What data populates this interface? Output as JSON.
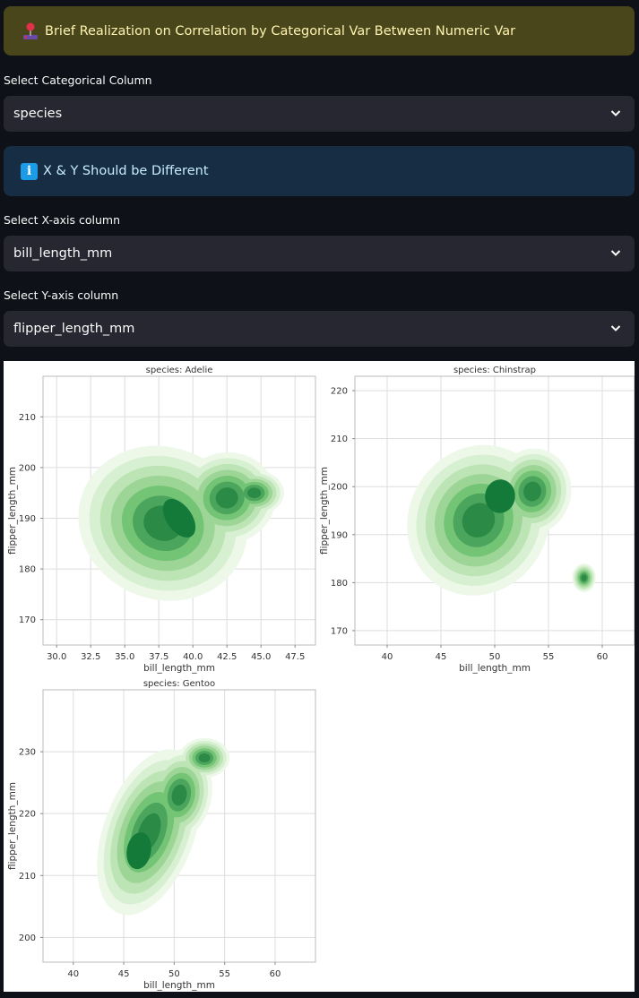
{
  "banner": {
    "title": "Brief Realization on Correlation by Categorical Var Between Numeric Var",
    "icon": "joystick-icon"
  },
  "categorical": {
    "label": "Select Categorical Column",
    "value": "species"
  },
  "info": {
    "text": "X & Y Should be Different",
    "icon": "info-icon"
  },
  "x_select": {
    "label": "Select X-axis column",
    "value": "bill_length_mm"
  },
  "y_select": {
    "label": "Select Y-axis column",
    "value": "flipper_length_mm"
  },
  "colors": {
    "page_bg": "#0e1117",
    "banner_bg": "#4a461b",
    "info_bg": "#172d43",
    "select_bg": "#262730"
  },
  "chart_data": [
    {
      "type": "kde",
      "title": "species: Adelie",
      "xlabel": "bill_length_mm",
      "ylabel": "flipper_length_mm",
      "xlim": [
        29,
        49
      ],
      "ylim": [
        165,
        218
      ],
      "xticks": [
        30.0,
        32.5,
        35.0,
        37.5,
        40.0,
        42.5,
        45.0,
        47.5
      ],
      "xtick_labels": [
        "30.0",
        "32.5",
        "35.0",
        "37.5",
        "40.0",
        "42.5",
        "45.0",
        "47.5"
      ],
      "yticks": [
        170,
        180,
        190,
        200,
        210
      ],
      "grid": true,
      "peak": {
        "x": 39,
        "y": 190
      }
    },
    {
      "type": "kde",
      "title": "species: Chinstrap",
      "xlabel": "bill_length_mm",
      "ylabel": "flipper_length_mm",
      "xlim": [
        37,
        63
      ],
      "ylim": [
        167,
        223
      ],
      "xticks": [
        40,
        45,
        50,
        55,
        60
      ],
      "xtick_labels": [
        "40",
        "45",
        "50",
        "55",
        "60"
      ],
      "yticks": [
        170,
        180,
        190,
        200,
        210,
        220
      ],
      "grid": true,
      "peak": {
        "x": 50.5,
        "y": 198
      }
    },
    {
      "type": "kde",
      "title": "species: Gentoo",
      "xlabel": "bill_length_mm",
      "ylabel": "flipper_length_mm",
      "xlim": [
        37,
        64
      ],
      "ylim": [
        196,
        240
      ],
      "xticks": [
        40,
        45,
        50,
        55,
        60
      ],
      "xtick_labels": [
        "40",
        "45",
        "50",
        "55",
        "60"
      ],
      "yticks": [
        200,
        210,
        220,
        230
      ],
      "grid": true,
      "peak": {
        "x": 46.5,
        "y": 214
      }
    }
  ]
}
